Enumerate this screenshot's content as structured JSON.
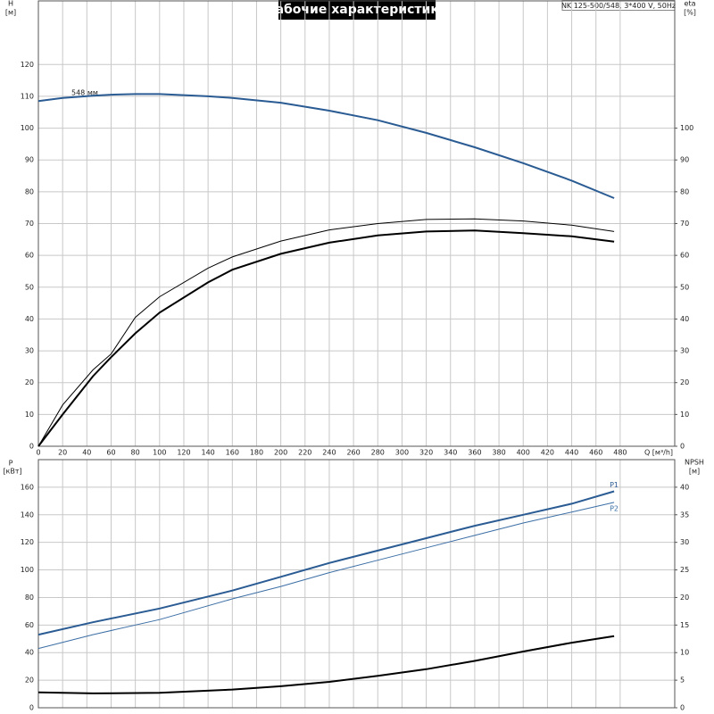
{
  "chart_data": [
    {
      "type": "line",
      "title": "Рабочие характеристики",
      "annotation": "NK 125-500/548, 3*400 V, 50Hz",
      "curve_label": "548 мм",
      "y_label": "H",
      "y_unit": "[м]",
      "y2_label": "eta",
      "y2_unit": "[%]",
      "x_label": "Q [м³/h]",
      "x": [
        0,
        20,
        45,
        60,
        80,
        100,
        140,
        160,
        200,
        240,
        280,
        320,
        360,
        400,
        440,
        475
      ],
      "series": [
        {
          "color": "#2a5b93",
          "line_width": 2,
          "values": [
            108.5,
            109.5,
            110.2,
            110.5,
            110.7,
            110.7,
            110,
            109.5,
            108,
            105.5,
            102.5,
            98.5,
            94,
            89,
            83.5,
            78
          ]
        },
        {
          "color": "#000000",
          "line_width": 1,
          "axis": "y2",
          "values": [
            0,
            13,
            24,
            29,
            40.5,
            47,
            56,
            59.5,
            64.5,
            68,
            70,
            71.3,
            71.5,
            70.8,
            69.5,
            67.5
          ]
        },
        {
          "color": "#000000",
          "line_width": 2,
          "axis": "y2",
          "values": [
            0,
            10,
            22,
            28,
            35.5,
            42,
            51.5,
            55.5,
            60.5,
            64,
            66.3,
            67.5,
            67.8,
            67,
            66,
            64.3
          ]
        }
      ],
      "xlim": [
        0,
        525
      ],
      "xticks": [
        0,
        20,
        40,
        60,
        80,
        100,
        120,
        140,
        160,
        180,
        200,
        220,
        240,
        260,
        280,
        300,
        320,
        340,
        360,
        380,
        400,
        420,
        440,
        460,
        480
      ],
      "ylim": [
        0,
        140
      ],
      "yticks": [
        0,
        10,
        20,
        30,
        40,
        50,
        60,
        70,
        80,
        90,
        100,
        110,
        120
      ],
      "y2lim": [
        0,
        140
      ],
      "y2ticks": [
        0,
        10,
        20,
        30,
        40,
        50,
        60,
        70,
        80,
        90,
        100
      ],
      "grid": true
    },
    {
      "type": "line",
      "y_label": "P",
      "y_unit": "[кВт]",
      "y2_label": "NPSH",
      "y2_unit": "[м]",
      "x": [
        0,
        45,
        100,
        160,
        200,
        240,
        280,
        320,
        360,
        400,
        440,
        475
      ],
      "series": [
        {
          "name": "P1",
          "color": "#2a5b93",
          "line_width": 2,
          "values": [
            53,
            62,
            72,
            85,
            95,
            105,
            114,
            123,
            132,
            140,
            148,
            157
          ]
        },
        {
          "name": "P2",
          "color": "#3b6ea5",
          "line_width": 1,
          "values": [
            43,
            53,
            64,
            79,
            88,
            98,
            107,
            116,
            125,
            134,
            142,
            149
          ]
        },
        {
          "color": "#000000",
          "line_width": 2,
          "axis": "y2",
          "values": [
            2.8,
            2.6,
            2.7,
            3.3,
            3.9,
            4.7,
            5.8,
            7,
            8.5,
            10.2,
            11.8,
            13
          ]
        }
      ],
      "xlim": [
        0,
        525
      ],
      "ylim": [
        0,
        180
      ],
      "yticks": [
        0,
        20,
        40,
        60,
        80,
        100,
        120,
        140,
        160
      ],
      "y2lim": [
        0,
        45
      ],
      "y2ticks": [
        0,
        5,
        10,
        15,
        20,
        25,
        30,
        35,
        40
      ],
      "grid": true
    }
  ]
}
